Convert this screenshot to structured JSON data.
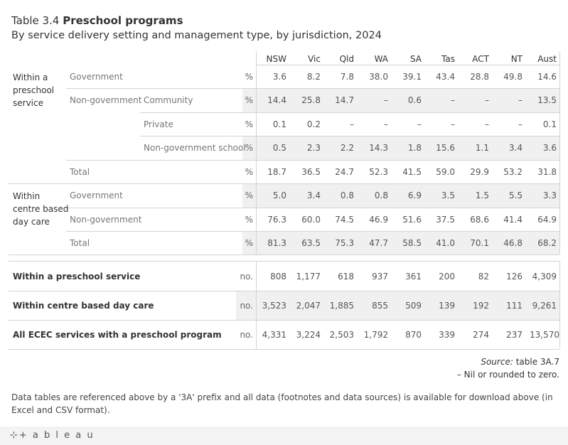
{
  "title": {
    "prefix": "Table 3.4",
    "main": "Preschool programs"
  },
  "subtitle": "By service delivery setting and management type, by jurisdiction, 2024",
  "columns": [
    "NSW",
    "Vic",
    "Qld",
    "WA",
    "SA",
    "Tas",
    "ACT",
    "NT",
    "Aust"
  ],
  "pct_rows": [
    {
      "l1": "Within a\npreschool\nservice",
      "l2": "Government",
      "l3": "",
      "unit": "%",
      "values": [
        "3.6",
        "8.2",
        "7.8",
        "38.0",
        "39.1",
        "43.4",
        "28.8",
        "49.8",
        "14.6"
      ]
    },
    {
      "l1": "",
      "l2": "Non-government",
      "l3": "Community",
      "unit": "%",
      "values": [
        "14.4",
        "25.8",
        "14.7",
        "–",
        "0.6",
        "–",
        "–",
        "–",
        "13.5"
      ]
    },
    {
      "l1": "",
      "l2": "",
      "l3": "Private",
      "unit": "%",
      "values": [
        "0.1",
        "0.2",
        "–",
        "–",
        "–",
        "–",
        "–",
        "–",
        "0.1"
      ]
    },
    {
      "l1": "",
      "l2": "",
      "l3": "Non-government school",
      "unit": "%",
      "values": [
        "0.5",
        "2.3",
        "2.2",
        "14.3",
        "1.8",
        "15.6",
        "1.1",
        "3.4",
        "3.6"
      ]
    },
    {
      "l1": "",
      "l2": "Total",
      "l3": "",
      "unit": "%",
      "values": [
        "18.7",
        "36.5",
        "24.7",
        "52.3",
        "41.5",
        "59.0",
        "29.9",
        "53.2",
        "31.8"
      ]
    },
    {
      "l1": "Within\ncentre based\nday care",
      "l2": "Government",
      "l3": "",
      "unit": "%",
      "values": [
        "5.0",
        "3.4",
        "0.8",
        "0.8",
        "6.9",
        "3.5",
        "1.5",
        "5.5",
        "3.3"
      ]
    },
    {
      "l1": "",
      "l2": "Non-government",
      "l3": "",
      "unit": "%",
      "values": [
        "76.3",
        "60.0",
        "74.5",
        "46.9",
        "51.6",
        "37.5",
        "68.6",
        "41.4",
        "64.9"
      ]
    },
    {
      "l1": "",
      "l2": "Total",
      "l3": "",
      "unit": "%",
      "values": [
        "81.3",
        "63.5",
        "75.3",
        "47.7",
        "58.5",
        "41.0",
        "70.1",
        "46.8",
        "68.2"
      ]
    }
  ],
  "count_rows": [
    {
      "label": "Within a preschool service",
      "unit": "no.",
      "values": [
        "808",
        "1,177",
        "618",
        "937",
        "361",
        "200",
        "82",
        "126",
        "4,309"
      ]
    },
    {
      "label": "Within centre based day care",
      "unit": "no.",
      "values": [
        "3,523",
        "2,047",
        "1,885",
        "855",
        "509",
        "139",
        "192",
        "111",
        "9,261"
      ]
    },
    {
      "label": "All ECEC services with a preschool program",
      "unit": "no.",
      "values": [
        "4,331",
        "3,224",
        "2,503",
        "1,792",
        "870",
        "339",
        "274",
        "237",
        "13,570"
      ]
    }
  ],
  "source": {
    "label": "Source:",
    "text": "table 3A.7"
  },
  "nil_note": "– Nil or rounded to zero.",
  "footnote": "Data tables are referenced above by a '3A' prefix and all data (footnotes and data sources) is available for download above (in Excel and CSV format).",
  "footer": {
    "logo_text": "+ a b l e a u"
  }
}
